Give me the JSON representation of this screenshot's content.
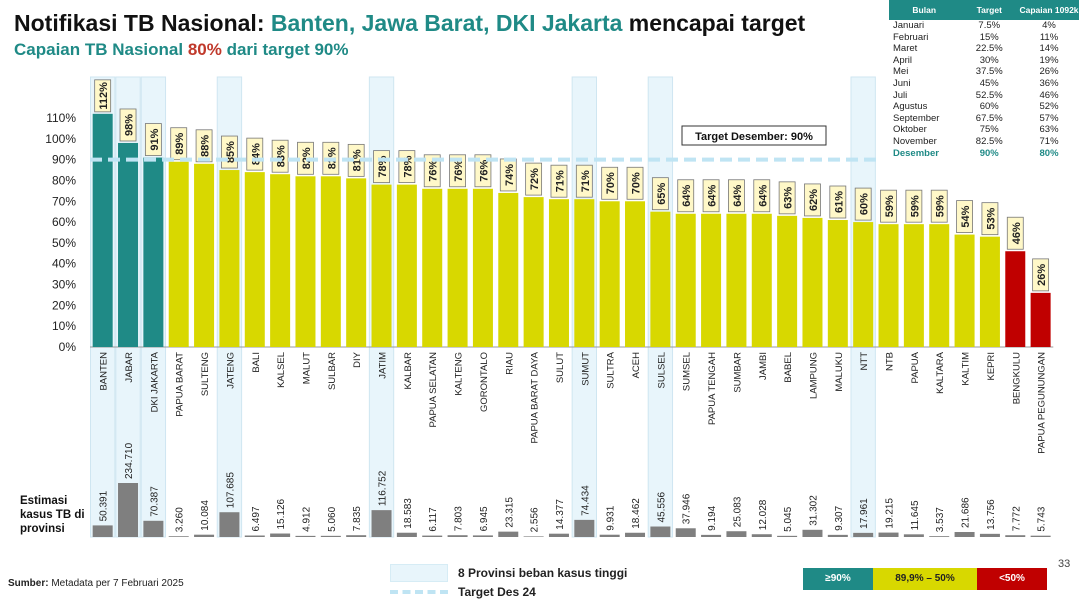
{
  "header": {
    "title_a": "Notifikasi TB Nasional: ",
    "title_b": "Banten, Jawa Barat, DKI Jakarta",
    "title_c": " mencapai target",
    "subtitle_a": "Capaian TB Nasional ",
    "subtitle_b": "80%",
    "subtitle_c": " dari target 90%"
  },
  "target_box": "Target Desember: 90%",
  "estimasi_label": "Estimasi kasus TB di provinsi",
  "monthly_table": {
    "headers": [
      "Bulan",
      "Target",
      "Capaian 1092k"
    ],
    "rows": [
      {
        "bulan": "Januari",
        "target": "7.5%",
        "capaian": "4%"
      },
      {
        "bulan": "Februari",
        "target": "15%",
        "capaian": "11%"
      },
      {
        "bulan": "Maret",
        "target": "22.5%",
        "capaian": "14%"
      },
      {
        "bulan": "April",
        "target": "30%",
        "capaian": "19%"
      },
      {
        "bulan": "Mei",
        "target": "37.5%",
        "capaian": "26%"
      },
      {
        "bulan": "Juni",
        "target": "45%",
        "capaian": "36%"
      },
      {
        "bulan": "Juli",
        "target": "52.5%",
        "capaian": "46%"
      },
      {
        "bulan": "Agustus",
        "target": "60%",
        "capaian": "52%"
      },
      {
        "bulan": "September",
        "target": "67.5%",
        "capaian": "57%"
      },
      {
        "bulan": "Oktober",
        "target": "75%",
        "capaian": "63%"
      },
      {
        "bulan": "November",
        "target": "82.5%",
        "capaian": "71%"
      },
      {
        "bulan": "Desember",
        "target": "90%",
        "capaian": "80%"
      }
    ]
  },
  "legend": {
    "high_burden": "8 Provinsi beban kasus tinggi",
    "target_line": "Target Des 24",
    "categories": [
      "≥90%",
      "89,9% – 50%",
      "<50%"
    ]
  },
  "source_label": "Sumber:",
  "source_text": " Metadata per 7 Februari 2025",
  "page_number": "33",
  "colors": {
    "teal": "#1f8a86",
    "yellow": "#d8d800",
    "red": "#c00000",
    "highlight": "#e8f5fb",
    "target": "#bfe4f3",
    "estimate": "#7f7f7f"
  },
  "chart_data": {
    "type": "bar",
    "ylim": [
      0,
      110
    ],
    "yticks": [
      "0%",
      "10%",
      "20%",
      "30%",
      "40%",
      "50%",
      "60%",
      "70%",
      "80%",
      "90%",
      "100%",
      "110%"
    ],
    "target": 90,
    "categories": [
      "BANTEN",
      "JABAR",
      "DKI JAKARTA",
      "PAPUA BARAT",
      "SULTENG",
      "JATENG",
      "BALI",
      "KALSEL",
      "MALUT",
      "SULBAR",
      "DIY",
      "JATIM",
      "KALBAR",
      "PAPUA SELATAN",
      "KALTENG",
      "GORONTALO",
      "RIAU",
      "PAPUA BARAT DAYA",
      "SULUT",
      "SUMUT",
      "SULTRA",
      "ACEH",
      "SULSEL",
      "SUMSEL",
      "PAPUA TENGAH",
      "SUMBAR",
      "JAMBI",
      "BABEL",
      "LAMPUNG",
      "MALUKU",
      "NTT",
      "NTB",
      "PAPUA",
      "KALTARA",
      "KALTIM",
      "KEPRI",
      "BENGKULU",
      "PAPUA PEGUNUNGAN"
    ],
    "values": [
      112,
      98,
      91,
      89,
      88,
      85,
      84,
      83,
      82,
      82,
      81,
      78,
      78,
      76,
      76,
      76,
      74,
      72,
      71,
      71,
      70,
      70,
      65,
      64,
      64,
      64,
      64,
      63,
      62,
      61,
      60,
      59,
      59,
      59,
      54,
      53,
      46,
      26
    ],
    "labels": [
      "112%",
      "98%",
      "91%",
      "89%",
      "88%",
      "85%",
      "84%",
      "83%",
      "82%",
      "82%",
      "81%",
      "78%",
      "78%",
      "76%",
      "76%",
      "76%",
      "74%",
      "72%",
      "71%",
      "71%",
      "70%",
      "70%",
      "65%",
      "64%",
      "64%",
      "64%",
      "64%",
      "63%",
      "62%",
      "61%",
      "60%",
      "59%",
      "59%",
      "59%",
      "54%",
      "53%",
      "46%",
      "26%"
    ],
    "high_burden": [
      "BANTEN",
      "JABAR",
      "DKI JAKARTA",
      "JATENG",
      "JATIM",
      "SUMUT",
      "SULSEL",
      "NTT"
    ],
    "estimates": [
      50391,
      234710,
      70387,
      3260,
      10084,
      107685,
      6497,
      15126,
      4912,
      5060,
      7835,
      116752,
      18583,
      6117,
      7803,
      6945,
      23315,
      2556,
      14377,
      74434,
      9931,
      18462,
      45556,
      37946,
      9194,
      25083,
      12028,
      5045,
      31302,
      9307,
      17961,
      19215,
      11645,
      3537,
      21686,
      13756,
      7772,
      5743
    ],
    "estimate_labels": [
      "50.391",
      "234.710",
      "70.387",
      "3.260",
      "10.084",
      "107.685",
      "6.497",
      "15.126",
      "4.912",
      "5.060",
      "7.835",
      "116.752",
      "18.583",
      "6.117",
      "7.803",
      "6.945",
      "23.315",
      "2.556",
      "14.377",
      "74.434",
      "9.931",
      "18.462",
      "45.556",
      "37.946",
      "9.194",
      "25.083",
      "12.028",
      "5.045",
      "31.302",
      "9.307",
      "17.961",
      "19.215",
      "11.645",
      "3.537",
      "21.686",
      "13.756",
      "7.772",
      "5.743"
    ]
  }
}
